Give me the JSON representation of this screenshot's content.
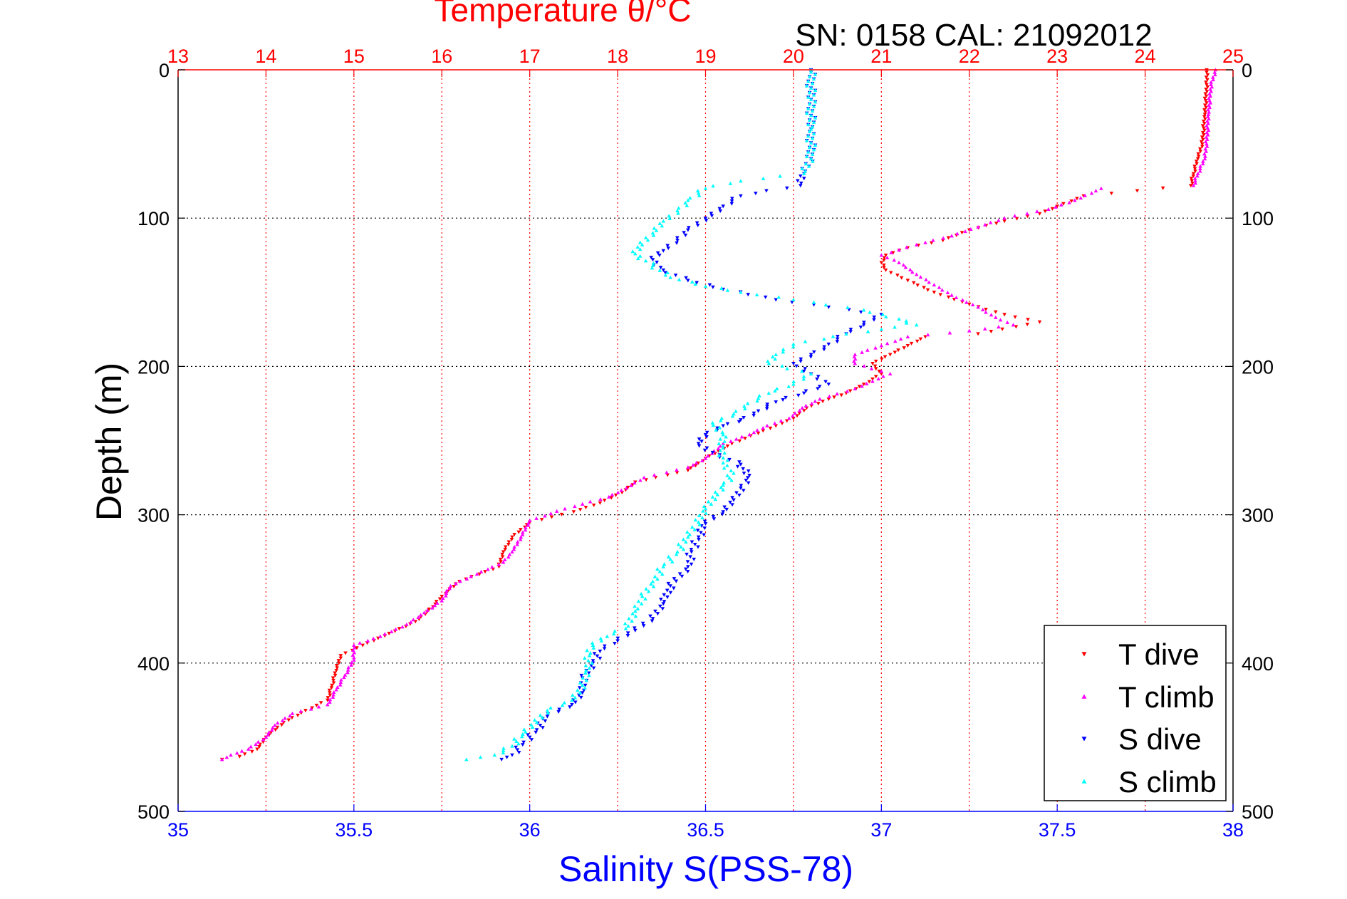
{
  "chart_data": {
    "type": "scatter",
    "title": "Temperature θ/°C",
    "annotation": "SN: 0158  CAL: 21092012",
    "xlabel_bottom": "Salinity S(PSS-78)",
    "xlabel_top": "Temperature θ/°C",
    "ylabel": "Depth (m)",
    "x_top_range": [
      13,
      25
    ],
    "x_top_ticks": [
      "13",
      "14",
      "15",
      "16",
      "17",
      "18",
      "19",
      "20",
      "21",
      "22",
      "23",
      "24",
      "25"
    ],
    "x_bottom_range": [
      35,
      38
    ],
    "x_bottom_ticks": [
      "35",
      "35.5",
      "36",
      "36.5",
      "37",
      "37.5",
      "38"
    ],
    "y_range": [
      0,
      500
    ],
    "y_reversed": true,
    "y_ticks": [
      "0",
      "100",
      "200",
      "300",
      "400",
      "500"
    ],
    "grid": true,
    "legend_position": "bottom-right",
    "colors": {
      "t_dive": "#ff0000",
      "t_climb": "#ff00ff",
      "s_dive": "#0000ff",
      "s_climb": "#00ffff",
      "temperature_axis": "#ff0000",
      "salinity_axis": "#0000ff"
    },
    "series": [
      {
        "name": "T dive",
        "axis": "temperature",
        "marker": "triangle-down",
        "points": [
          [
            24.7,
            0
          ],
          [
            24.7,
            10
          ],
          [
            24.68,
            30
          ],
          [
            24.65,
            50
          ],
          [
            24.6,
            60
          ],
          [
            24.55,
            70
          ],
          [
            24.52,
            78
          ],
          [
            23.3,
            85
          ],
          [
            23.0,
            92
          ],
          [
            22.8,
            97
          ],
          [
            22.4,
            102
          ],
          [
            22.0,
            108
          ],
          [
            21.7,
            115
          ],
          [
            21.3,
            120
          ],
          [
            21.05,
            125
          ],
          [
            21.0,
            130
          ],
          [
            21.05,
            135
          ],
          [
            21.3,
            142
          ],
          [
            21.6,
            150
          ],
          [
            22.0,
            158
          ],
          [
            22.4,
            165
          ],
          [
            22.8,
            170
          ],
          [
            22.1,
            178
          ],
          [
            21.5,
            180
          ],
          [
            21.3,
            186
          ],
          [
            21.1,
            192
          ],
          [
            20.9,
            198
          ],
          [
            21.0,
            205
          ],
          [
            20.8,
            212
          ],
          [
            20.6,
            218
          ],
          [
            20.4,
            222
          ],
          [
            20.15,
            228
          ],
          [
            20.0,
            235
          ],
          [
            19.8,
            240
          ],
          [
            19.6,
            245
          ],
          [
            19.3,
            252
          ],
          [
            19.0,
            262
          ],
          [
            18.8,
            270
          ],
          [
            18.2,
            278
          ],
          [
            18.05,
            285
          ],
          [
            17.8,
            292
          ],
          [
            17.5,
            298
          ],
          [
            17.0,
            305
          ],
          [
            16.8,
            315
          ],
          [
            16.7,
            325
          ],
          [
            16.65,
            335
          ],
          [
            16.2,
            345
          ],
          [
            16.0,
            355
          ],
          [
            15.9,
            362
          ],
          [
            15.7,
            372
          ],
          [
            15.4,
            380
          ],
          [
            15.1,
            388
          ],
          [
            14.85,
            395
          ],
          [
            14.8,
            405
          ],
          [
            14.75,
            415
          ],
          [
            14.7,
            425
          ],
          [
            14.45,
            432
          ],
          [
            14.2,
            440
          ],
          [
            14.0,
            450
          ],
          [
            13.9,
            458
          ],
          [
            13.7,
            463
          ],
          [
            13.5,
            465
          ]
        ]
      },
      {
        "name": "T climb",
        "axis": "temperature",
        "marker": "triangle-up",
        "points": [
          [
            24.8,
            0
          ],
          [
            24.75,
            10
          ],
          [
            24.72,
            30
          ],
          [
            24.7,
            50
          ],
          [
            24.68,
            60
          ],
          [
            24.6,
            70
          ],
          [
            24.55,
            78
          ],
          [
            23.5,
            80
          ],
          [
            23.2,
            88
          ],
          [
            22.9,
            94
          ],
          [
            22.4,
            100
          ],
          [
            22.1,
            106
          ],
          [
            21.8,
            112
          ],
          [
            21.4,
            118
          ],
          [
            21.0,
            125
          ],
          [
            21.2,
            130
          ],
          [
            21.4,
            138
          ],
          [
            21.6,
            145
          ],
          [
            21.8,
            152
          ],
          [
            22.1,
            160
          ],
          [
            22.3,
            167
          ],
          [
            22.5,
            172
          ],
          [
            22.0,
            176
          ],
          [
            21.3,
            180
          ],
          [
            21.0,
            186
          ],
          [
            20.7,
            192
          ],
          [
            20.7,
            198
          ],
          [
            21.1,
            205
          ],
          [
            20.9,
            210
          ],
          [
            20.7,
            215
          ],
          [
            20.3,
            222
          ],
          [
            20.1,
            228
          ],
          [
            19.95,
            235
          ],
          [
            19.7,
            240
          ],
          [
            19.5,
            246
          ],
          [
            19.2,
            252
          ],
          [
            19.0,
            262
          ],
          [
            18.8,
            268
          ],
          [
            18.3,
            275
          ],
          [
            18.1,
            282
          ],
          [
            17.9,
            288
          ],
          [
            17.4,
            296
          ],
          [
            17.0,
            304
          ],
          [
            16.9,
            315
          ],
          [
            16.8,
            325
          ],
          [
            16.7,
            332
          ],
          [
            16.4,
            340
          ],
          [
            16.1,
            348
          ],
          [
            16.0,
            358
          ],
          [
            15.8,
            366
          ],
          [
            15.6,
            374
          ],
          [
            15.3,
            382
          ],
          [
            15.0,
            388
          ],
          [
            15.0,
            398
          ],
          [
            14.9,
            408
          ],
          [
            14.8,
            418
          ],
          [
            14.7,
            428
          ],
          [
            14.3,
            434
          ],
          [
            14.1,
            442
          ],
          [
            14.0,
            450
          ],
          [
            13.8,
            458
          ],
          [
            13.6,
            462
          ],
          [
            13.5,
            465
          ]
        ]
      },
      {
        "name": "S dive",
        "axis": "salinity",
        "marker": "triangle-down",
        "points": [
          [
            36.8,
            0
          ],
          [
            36.8,
            20
          ],
          [
            36.8,
            40
          ],
          [
            36.8,
            60
          ],
          [
            36.78,
            70
          ],
          [
            36.77,
            78
          ],
          [
            36.6,
            85
          ],
          [
            36.55,
            92
          ],
          [
            36.5,
            100
          ],
          [
            36.45,
            108
          ],
          [
            36.42,
            115
          ],
          [
            36.38,
            122
          ],
          [
            36.35,
            128
          ],
          [
            36.38,
            135
          ],
          [
            36.45,
            142
          ],
          [
            36.55,
            148
          ],
          [
            36.7,
            155
          ],
          [
            36.85,
            160
          ],
          [
            37.0,
            165
          ],
          [
            36.95,
            172
          ],
          [
            36.9,
            178
          ],
          [
            36.85,
            185
          ],
          [
            36.8,
            192
          ],
          [
            36.75,
            198
          ],
          [
            36.8,
            205
          ],
          [
            36.85,
            212
          ],
          [
            36.78,
            218
          ],
          [
            36.7,
            224
          ],
          [
            36.65,
            230
          ],
          [
            36.6,
            236
          ],
          [
            36.55,
            240
          ],
          [
            36.5,
            246
          ],
          [
            36.48,
            252
          ],
          [
            36.52,
            258
          ],
          [
            36.6,
            266
          ],
          [
            36.62,
            275
          ],
          [
            36.6,
            282
          ],
          [
            36.58,
            290
          ],
          [
            36.55,
            298
          ],
          [
            36.5,
            306
          ],
          [
            36.48,
            315
          ],
          [
            36.46,
            325
          ],
          [
            36.45,
            335
          ],
          [
            36.4,
            348
          ],
          [
            36.38,
            360
          ],
          [
            36.35,
            370
          ],
          [
            36.3,
            378
          ],
          [
            36.25,
            385
          ],
          [
            36.2,
            392
          ],
          [
            36.18,
            400
          ],
          [
            36.15,
            410
          ],
          [
            36.15,
            420
          ],
          [
            36.12,
            428
          ],
          [
            36.05,
            436
          ],
          [
            36.02,
            445
          ],
          [
            35.98,
            455
          ],
          [
            35.95,
            462
          ],
          [
            35.92,
            465
          ]
        ]
      },
      {
        "name": "S climb",
        "axis": "salinity",
        "marker": "triangle-up",
        "points": [
          [
            36.8,
            0
          ],
          [
            36.8,
            20
          ],
          [
            36.8,
            40
          ],
          [
            36.8,
            60
          ],
          [
            36.78,
            70
          ],
          [
            36.6,
            75
          ],
          [
            36.5,
            80
          ],
          [
            36.45,
            88
          ],
          [
            36.42,
            95
          ],
          [
            36.38,
            102
          ],
          [
            36.35,
            110
          ],
          [
            36.32,
            118
          ],
          [
            36.3,
            124
          ],
          [
            36.35,
            132
          ],
          [
            36.4,
            140
          ],
          [
            36.5,
            146
          ],
          [
            36.6,
            150
          ],
          [
            36.75,
            155
          ],
          [
            36.95,
            162
          ],
          [
            37.05,
            168
          ],
          [
            37.1,
            172
          ],
          [
            36.9,
            178
          ],
          [
            36.75,
            185
          ],
          [
            36.7,
            192
          ],
          [
            36.68,
            198
          ],
          [
            36.8,
            205
          ],
          [
            36.75,
            212
          ],
          [
            36.68,
            218
          ],
          [
            36.62,
            225
          ],
          [
            36.58,
            232
          ],
          [
            36.52,
            238
          ],
          [
            36.55,
            246
          ],
          [
            36.55,
            255
          ],
          [
            36.55,
            265
          ],
          [
            36.58,
            272
          ],
          [
            36.55,
            280
          ],
          [
            36.52,
            288
          ],
          [
            36.5,
            296
          ],
          [
            36.48,
            305
          ],
          [
            36.45,
            315
          ],
          [
            36.42,
            325
          ],
          [
            36.38,
            335
          ],
          [
            36.35,
            345
          ],
          [
            36.32,
            355
          ],
          [
            36.3,
            365
          ],
          [
            36.28,
            375
          ],
          [
            36.22,
            382
          ],
          [
            36.18,
            388
          ],
          [
            36.17,
            395
          ],
          [
            36.16,
            405
          ],
          [
            36.15,
            415
          ],
          [
            36.12,
            425
          ],
          [
            36.05,
            432
          ],
          [
            36.02,
            440
          ],
          [
            35.98,
            448
          ],
          [
            35.95,
            456
          ],
          [
            35.9,
            462
          ],
          [
            35.82,
            465
          ]
        ]
      }
    ]
  }
}
